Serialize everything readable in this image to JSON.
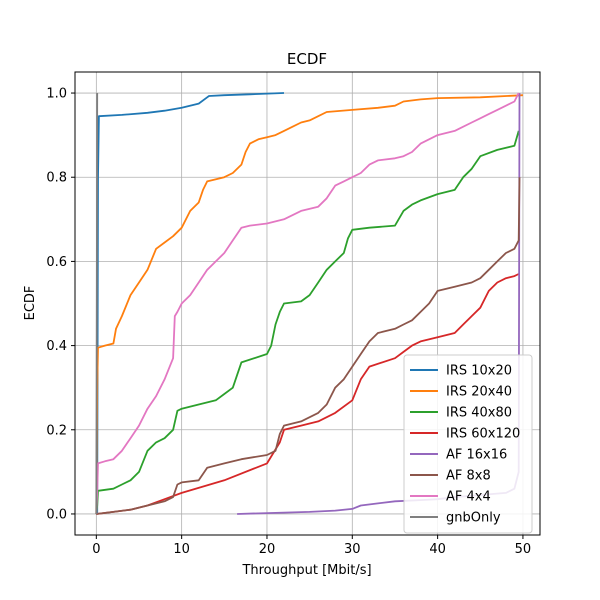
{
  "chart_data": {
    "type": "line",
    "title": "ECDF",
    "xlabel": "Throughput [Mbit/s]",
    "ylabel": "ECDF",
    "xlim": [
      -2.5,
      52.0
    ],
    "ylim": [
      -0.05,
      1.05
    ],
    "xticks": [
      0,
      10,
      20,
      30,
      40,
      50
    ],
    "xtick_labels": [
      "0",
      "10",
      "20",
      "30",
      "40",
      "50"
    ],
    "yticks": [
      0.0,
      0.2,
      0.4,
      0.6,
      0.8,
      1.0
    ],
    "ytick_labels": [
      "0.0",
      "0.2",
      "0.4",
      "0.6",
      "0.8",
      "1.0"
    ],
    "grid": true,
    "legend_position": "lower-right",
    "series": [
      {
        "name": "IRS 10x20",
        "color": "#1f77b4",
        "x": [
          0.1,
          0.15,
          0.2,
          0.3,
          3,
          6,
          8,
          10,
          12,
          13,
          13.2,
          15,
          18,
          22
        ],
        "y": [
          0.0,
          0.4,
          0.8,
          0.945,
          0.948,
          0.953,
          0.958,
          0.965,
          0.975,
          0.99,
          0.993,
          0.995,
          0.997,
          1.0
        ]
      },
      {
        "name": "IRS 20x40",
        "color": "#ff7f0e",
        "x": [
          0.0,
          0.1,
          0.2,
          1,
          2,
          2.3,
          3,
          4,
          5,
          6,
          7,
          8,
          9,
          10,
          11,
          12,
          12.5,
          13,
          15,
          16,
          17,
          17.5,
          18,
          19,
          20,
          21,
          22,
          23,
          24,
          25,
          26,
          27,
          30,
          33,
          35,
          36,
          38,
          40,
          45,
          50
        ],
        "y": [
          0.0,
          0.3,
          0.395,
          0.4,
          0.405,
          0.44,
          0.47,
          0.52,
          0.55,
          0.58,
          0.63,
          0.645,
          0.66,
          0.68,
          0.72,
          0.74,
          0.77,
          0.79,
          0.8,
          0.81,
          0.83,
          0.86,
          0.88,
          0.89,
          0.895,
          0.9,
          0.91,
          0.92,
          0.93,
          0.935,
          0.945,
          0.955,
          0.96,
          0.965,
          0.97,
          0.98,
          0.985,
          0.988,
          0.99,
          0.995
        ]
      },
      {
        "name": "IRS 40x80",
        "color": "#2ca02c",
        "x": [
          0.0,
          0.1,
          0.2,
          2,
          3,
          4,
          5,
          6,
          7,
          8,
          9,
          9.5,
          10,
          12,
          14,
          15,
          16,
          16.5,
          17,
          20,
          20.5,
          21,
          21.5,
          22,
          24,
          25,
          26,
          27,
          28,
          29,
          29.5,
          30,
          32,
          35,
          36,
          37,
          38,
          40,
          42,
          43,
          44,
          45,
          47,
          49,
          49.5
        ],
        "y": [
          0.0,
          0.02,
          0.055,
          0.06,
          0.07,
          0.08,
          0.1,
          0.15,
          0.17,
          0.18,
          0.2,
          0.245,
          0.25,
          0.26,
          0.27,
          0.285,
          0.3,
          0.33,
          0.36,
          0.38,
          0.4,
          0.45,
          0.48,
          0.5,
          0.505,
          0.52,
          0.55,
          0.58,
          0.6,
          0.62,
          0.655,
          0.675,
          0.68,
          0.685,
          0.72,
          0.735,
          0.745,
          0.76,
          0.77,
          0.8,
          0.82,
          0.85,
          0.865,
          0.875,
          0.91
        ]
      },
      {
        "name": "IRS 60x120",
        "color": "#d62728",
        "x": [
          0.0,
          2,
          4,
          6,
          8,
          10,
          15,
          20,
          21.5,
          22,
          24,
          26,
          28,
          30,
          31,
          32,
          35,
          36,
          37,
          38,
          40,
          42,
          43,
          44,
          45,
          46,
          47,
          48,
          49,
          49.5
        ],
        "y": [
          0.0,
          0.005,
          0.01,
          0.02,
          0.035,
          0.05,
          0.08,
          0.12,
          0.17,
          0.2,
          0.21,
          0.22,
          0.24,
          0.27,
          0.32,
          0.35,
          0.37,
          0.385,
          0.4,
          0.41,
          0.42,
          0.43,
          0.45,
          0.47,
          0.49,
          0.53,
          0.55,
          0.56,
          0.565,
          0.57
        ]
      },
      {
        "name": "AF 16x16",
        "color": "#9467bd",
        "x": [
          16.5,
          20,
          25,
          28,
          30,
          31,
          33,
          35,
          38,
          40,
          42,
          45,
          48,
          49,
          49.5,
          49.6
        ],
        "y": [
          0.0,
          0.002,
          0.005,
          0.008,
          0.012,
          0.02,
          0.025,
          0.03,
          0.033,
          0.035,
          0.04,
          0.045,
          0.05,
          0.06,
          0.1,
          1.0
        ]
      },
      {
        "name": "AF 8x8",
        "color": "#8c564b",
        "x": [
          0.0,
          2,
          4,
          6,
          8,
          9,
          9.5,
          10,
          12,
          13,
          15,
          17,
          20,
          21,
          21.5,
          22,
          24,
          26,
          27,
          28,
          29,
          30,
          31,
          32,
          33,
          35,
          36,
          37,
          38,
          39,
          40,
          42,
          44,
          45,
          46,
          47,
          48,
          49,
          49.5,
          49.6
        ],
        "y": [
          0.0,
          0.005,
          0.01,
          0.02,
          0.03,
          0.04,
          0.07,
          0.075,
          0.08,
          0.11,
          0.12,
          0.13,
          0.14,
          0.15,
          0.19,
          0.21,
          0.22,
          0.24,
          0.26,
          0.3,
          0.32,
          0.35,
          0.38,
          0.41,
          0.43,
          0.44,
          0.45,
          0.46,
          0.48,
          0.5,
          0.53,
          0.54,
          0.55,
          0.56,
          0.58,
          0.6,
          0.62,
          0.63,
          0.65,
          0.8
        ]
      },
      {
        "name": "AF 4x4",
        "color": "#e377c2",
        "x": [
          0.0,
          0.1,
          0.2,
          1,
          2,
          3,
          4,
          5,
          6,
          7,
          8,
          9,
          9.2,
          9.5,
          10,
          11,
          12,
          13,
          14,
          15,
          16,
          17,
          18,
          20,
          22,
          24,
          26,
          27,
          28,
          29,
          30,
          31,
          32,
          33,
          35,
          36,
          37,
          38,
          40,
          42,
          44,
          45,
          46,
          47,
          48,
          49,
          49.5
        ],
        "y": [
          0.0,
          0.05,
          0.12,
          0.125,
          0.13,
          0.15,
          0.18,
          0.21,
          0.25,
          0.28,
          0.32,
          0.37,
          0.47,
          0.48,
          0.5,
          0.52,
          0.55,
          0.58,
          0.6,
          0.62,
          0.65,
          0.68,
          0.685,
          0.69,
          0.7,
          0.72,
          0.73,
          0.75,
          0.78,
          0.79,
          0.8,
          0.81,
          0.83,
          0.84,
          0.845,
          0.85,
          0.86,
          0.88,
          0.9,
          0.91,
          0.93,
          0.94,
          0.95,
          0.96,
          0.97,
          0.98,
          1.0
        ]
      },
      {
        "name": "gnbOnly",
        "color": "#7f7f7f",
        "x": [
          0.0,
          0.05,
          0.1
        ],
        "y": [
          0.0,
          0.5,
          1.0
        ]
      }
    ]
  }
}
